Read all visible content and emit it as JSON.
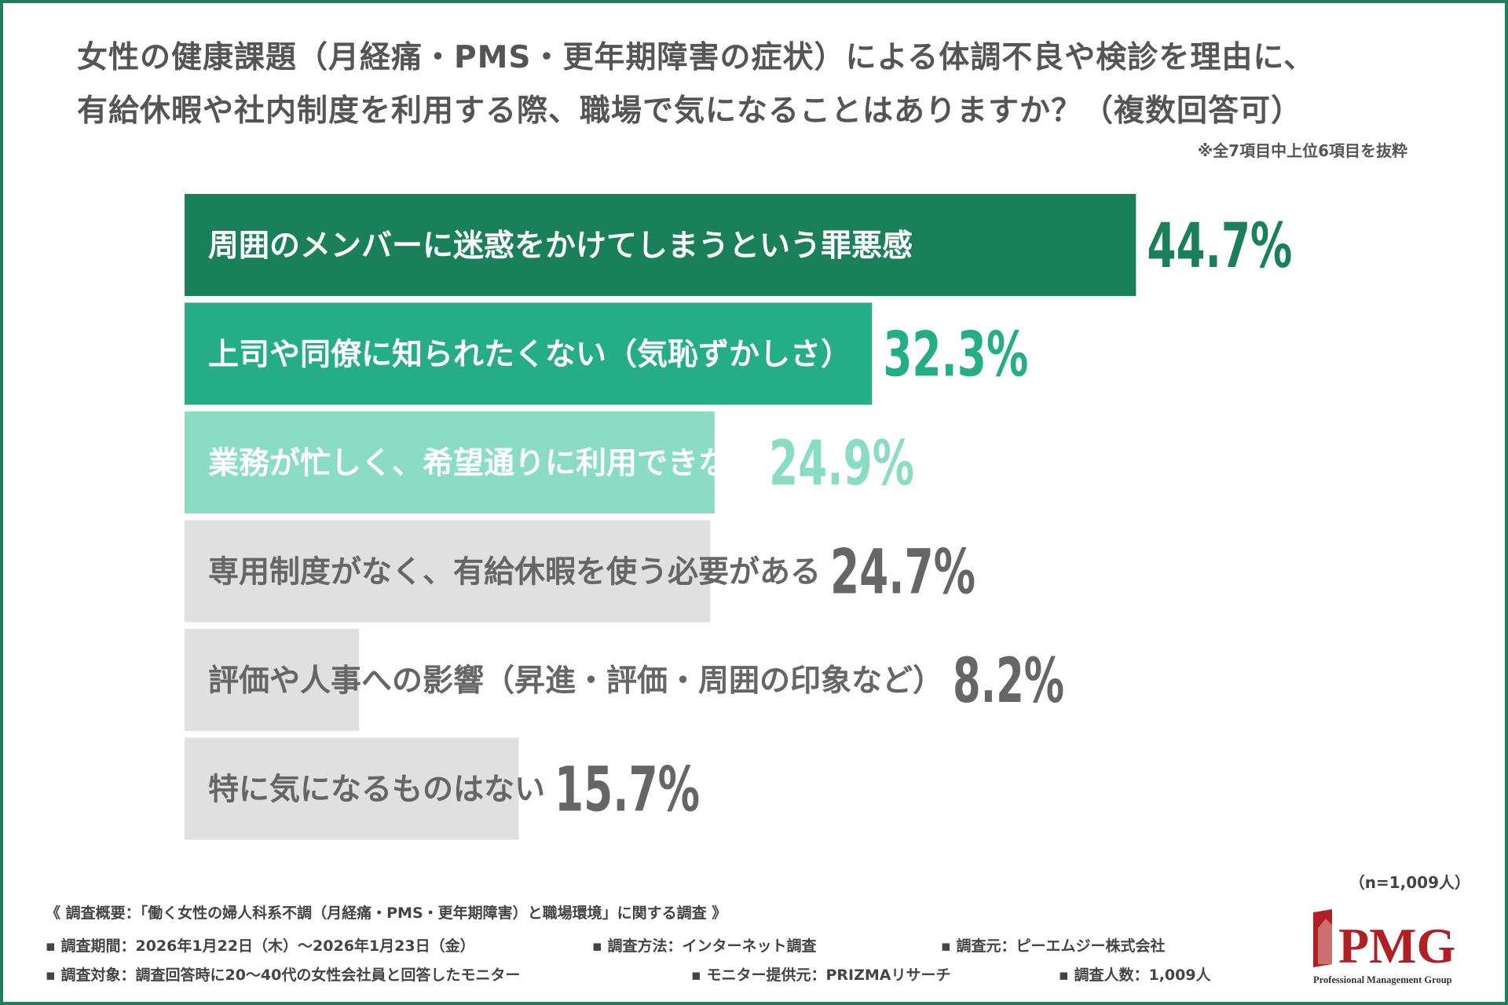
{
  "title": {
    "line1": "女性の健康課題（月経痛・PMS・更年期障害の症状）による体調不良や検診を理由に、",
    "line2": "有給休暇や社内制度を利用する際、職場で気になることはありますか？（複数回答可）"
  },
  "note": "※全7項目中上位6項目を抜粋",
  "sample_size": "（n=1,009人）",
  "chart_data": {
    "type": "bar",
    "orientation": "horizontal",
    "categories": [
      "周囲のメンバーに迷惑をかけてしまうという罪悪感",
      "上司や同僚に知られたくない（気恥ずかしさ）",
      "業務が忙しく、希望通りに利用できない",
      "専用制度がなく、有給休暇を使う必要がある",
      "評価や人事への影響（昇進・評価・周囲の印象など）",
      "特に気になるものはない"
    ],
    "values": [
      44.7,
      32.3,
      24.9,
      24.7,
      8.2,
      15.7
    ],
    "value_labels": [
      "44.7%",
      "32.3%",
      "24.9%",
      "24.7%",
      "8.2%",
      "15.7%"
    ],
    "unit": "%",
    "xlim": [
      0,
      100
    ],
    "grid": false,
    "legend": "none",
    "bar_colors": [
      "#19805a",
      "#25ad86",
      "#8addc3",
      "#e0e0e0",
      "#e0e0e0",
      "#e0e0e0"
    ],
    "value_colors": [
      "#19805a",
      "#25ad86",
      "#8addc3",
      "#666666",
      "#666666",
      "#666666"
    ],
    "label_colors": [
      "#ffffff",
      "#ffffff",
      "#ffffff",
      "#666666",
      "#666666",
      "#666666"
    ]
  },
  "footer": {
    "overview": "《 調査概要：「働く女性の婦人科系不調（月経痛・PMS・更年期障害）と職場環境」に関する調査 》",
    "period": "▪ 調査期間：2026年1月22日（木）〜2026年1月23日（金）",
    "method": "▪ 調査方法：インターネット調査",
    "conductor": "▪ 調査元：ピーエムジー株式会社",
    "target": "▪ 調査対象：調査回答時に20〜40代の女性会社員と回答したモニター",
    "provider": "▪ モニター提供元：PRIZMAリサーチ",
    "respondents": "▪ 調査人数：1,009人"
  },
  "logo": {
    "name": "PMG",
    "tagline": "Professional Management Group",
    "color": "#b11f24"
  },
  "accent_color": "#1e7d5a"
}
